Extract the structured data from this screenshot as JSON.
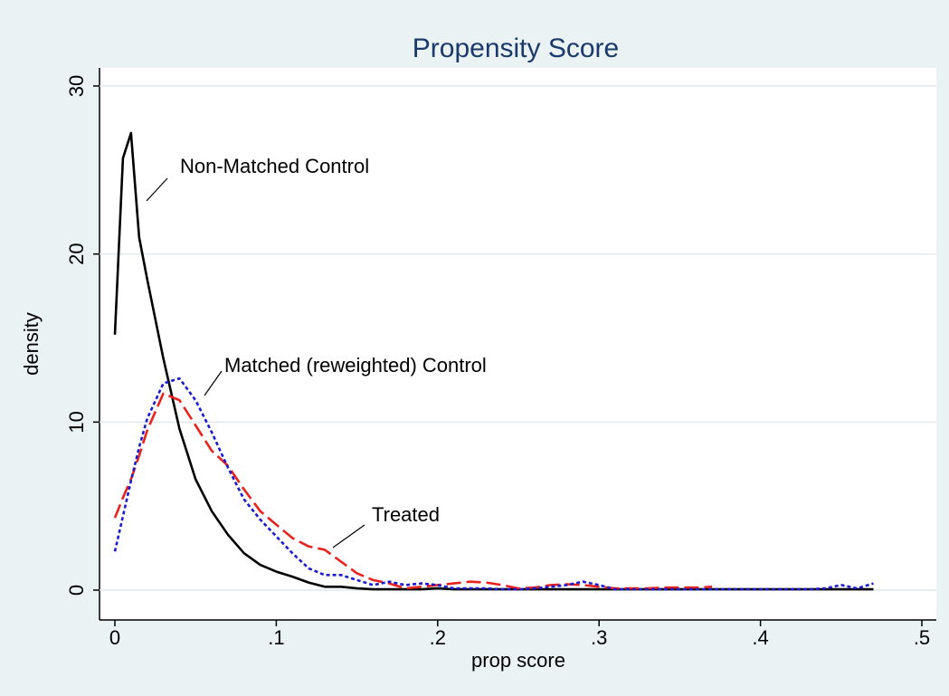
{
  "chart_data": {
    "type": "line",
    "title": "Propensity Score",
    "x_label": "prop score",
    "y_label": "density",
    "x": [
      0,
      0.005,
      0.01,
      0.015,
      0.02,
      0.03,
      0.04,
      0.05,
      0.06,
      0.07,
      0.08,
      0.09,
      0.1,
      0.11,
      0.12,
      0.13,
      0.14,
      0.15,
      0.16,
      0.17,
      0.18,
      0.19,
      0.2,
      0.21,
      0.22,
      0.23,
      0.24,
      0.25,
      0.26,
      0.27,
      0.28,
      0.29,
      0.3,
      0.31,
      0.32,
      0.33,
      0.34,
      0.35,
      0.36,
      0.37,
      0.38,
      0.39,
      0.4,
      0.41,
      0.42,
      0.43,
      0.44,
      0.45,
      0.46,
      0.47
    ],
    "series": [
      {
        "name": "Non-Matched Control",
        "color": "#000000",
        "dash": "none",
        "values": [
          15.2,
          25.7,
          27.2,
          21,
          18.5,
          13.8,
          9.6,
          6.6,
          4.7,
          3.3,
          2.2,
          1.5,
          1.1,
          0.8,
          0.45,
          0.2,
          0.2,
          0.1,
          0.05,
          0.05,
          0.05,
          0.05,
          0.1,
          0.05,
          0.05,
          0.05,
          0.05,
          0.05,
          0.05,
          0.05,
          0.05,
          0.05,
          0.05,
          0.05,
          0.05,
          0.05,
          0.05,
          0.05,
          0.05,
          0.05,
          0.05,
          0.05,
          0.05,
          0.05,
          0.05,
          0.05,
          0.05,
          0.05,
          0.05,
          0.05
        ]
      },
      {
        "name": "Treated",
        "color": "#e8231e",
        "dash": "16,6",
        "values": [
          4.3,
          5.5,
          6.6,
          8,
          9.5,
          11.7,
          11.3,
          9.8,
          8.3,
          7.4,
          6,
          4.7,
          3.9,
          3.1,
          2.6,
          2.4,
          1.7,
          1,
          0.6,
          0.4,
          0.1,
          0.2,
          0.3,
          0.4,
          0.5,
          0.45,
          0.3,
          0.1,
          0.15,
          0.3,
          0.35,
          0.3,
          0.2,
          0.1,
          0.1,
          0.1,
          0.15,
          0.15,
          0.15,
          0.2,
          null,
          null,
          null,
          null,
          null,
          null,
          null,
          null,
          null,
          null
        ]
      },
      {
        "name": "Matched (reweighted) Control",
        "color": "#1c1ccf",
        "dash": "4,3",
        "values": [
          2.3,
          4.4,
          6.5,
          8.5,
          10.2,
          12.3,
          12.6,
          11.3,
          9.4,
          7.3,
          5.4,
          4.2,
          3.2,
          2.2,
          1.3,
          0.9,
          0.9,
          0.6,
          0.3,
          0.5,
          0.3,
          0.4,
          0.3,
          0.1,
          0.1,
          0.1,
          0.05,
          0.05,
          0.1,
          0.2,
          0.3,
          0.5,
          0.3,
          0.05,
          0.05,
          0.05,
          0.05,
          0.05,
          0.05,
          0.05,
          0.05,
          0.05,
          0.05,
          0.05,
          0.05,
          0.05,
          0.1,
          0.3,
          0.1,
          0.4
        ]
      }
    ],
    "annotations": [
      "Non-Matched Control",
      "Matched (reweighted) Control",
      "Treated"
    ],
    "xlim": [
      0,
      0.5
    ],
    "xticks": [
      0,
      {
        "value": 0.1,
        "label": ".1"
      },
      {
        "value": 0.2,
        "label": ".2"
      },
      {
        "value": 0.3,
        "label": ".3"
      },
      {
        "value": 0.4,
        "label": ".4"
      },
      {
        "value": 0.5,
        "label": ".5"
      }
    ],
    "ylim": [
      0,
      30
    ],
    "yticks": [
      0,
      10,
      20,
      30
    ],
    "grid": true
  }
}
